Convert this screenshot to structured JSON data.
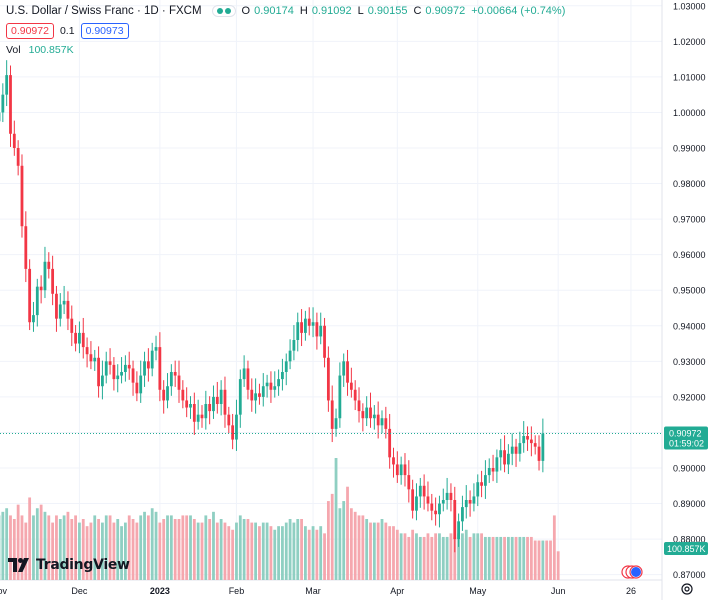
{
  "header": {
    "symbol": "U.S. Dollar / Swiss Franc · 1D · FXCM",
    "open_label": "O",
    "open": "0.90174",
    "high_label": "H",
    "high": "0.91092",
    "low_label": "L",
    "low": "0.90155",
    "close_label": "C",
    "close": "0.90972",
    "change": "+0.00664 (+0.74%)"
  },
  "price_row": {
    "sell": "0.90972",
    "spread": "0.1",
    "buy": "0.90973"
  },
  "volume": {
    "label": "Vol",
    "value": "100.857K"
  },
  "logo": {
    "text": "TradingView"
  },
  "colors": {
    "up": "#22ab94",
    "down": "#f23645",
    "up_vol": "#8fcfc2",
    "down_vol": "#f5a7ae",
    "grid": "#f0f3fa",
    "axis_text": "#131722"
  },
  "chart_data": {
    "type": "candlestick",
    "title": "U.S. Dollar / Swiss Franc",
    "y_ticks": [
      "0.87000",
      "0.88000",
      "0.89000",
      "0.90000",
      "0.91000",
      "0.92000",
      "0.93000",
      "0.94000",
      "0.95000",
      "0.96000",
      "0.97000",
      "0.98000",
      "0.99000",
      "1.00000",
      "1.01000",
      "1.02000",
      "1.03000"
    ],
    "ylim": [
      0.8685,
      1.0305
    ],
    "x_labels": [
      "Nov",
      "Dec",
      "2023",
      "Feb",
      "Mar",
      "Apr",
      "May",
      "Jun",
      "26"
    ],
    "x_label_positions": [
      0,
      21,
      42,
      62,
      82,
      104,
      125,
      146,
      165
    ],
    "x_range": [
      0,
      165
    ],
    "current_price_label": "0.90972",
    "countdown_label": "01:59:02",
    "volume_label": "100.857K",
    "closes": [
      1.0,
      1.005,
      1.0105,
      0.994,
      0.99,
      0.985,
      0.968,
      0.956,
      0.941,
      0.943,
      0.951,
      0.95,
      0.958,
      0.956,
      0.949,
      0.942,
      0.946,
      0.947,
      0.942,
      0.938,
      0.935,
      0.938,
      0.934,
      0.932,
      0.93,
      0.931,
      0.923,
      0.926,
      0.93,
      0.929,
      0.925,
      0.926,
      0.927,
      0.929,
      0.928,
      0.924,
      0.921,
      0.926,
      0.93,
      0.928,
      0.933,
      0.934,
      0.922,
      0.919,
      0.923,
      0.927,
      0.926,
      0.922,
      0.919,
      0.917,
      0.918,
      0.913,
      0.915,
      0.914,
      0.918,
      0.916,
      0.92,
      0.918,
      0.922,
      0.915,
      0.912,
      0.908,
      0.915,
      0.925,
      0.928,
      0.922,
      0.919,
      0.921,
      0.92,
      0.923,
      0.924,
      0.922,
      0.923,
      0.925,
      0.927,
      0.93,
      0.933,
      0.936,
      0.941,
      0.938,
      0.942,
      0.94,
      0.941,
      0.937,
      0.94,
      0.931,
      0.919,
      0.911,
      0.914,
      0.926,
      0.93,
      0.924,
      0.922,
      0.919,
      0.916,
      0.914,
      0.917,
      0.914,
      0.915,
      0.912,
      0.914,
      0.911,
      0.903,
      0.901,
      0.898,
      0.901,
      0.898,
      0.894,
      0.888,
      0.892,
      0.895,
      0.892,
      0.89,
      0.888,
      0.887,
      0.89,
      0.891,
      0.893,
      0.891,
      0.88,
      0.885,
      0.889,
      0.891,
      0.89,
      0.892,
      0.896,
      0.895,
      0.898,
      0.9,
      0.899,
      0.903,
      0.905,
      0.901,
      0.904,
      0.906,
      0.904,
      0.907,
      0.909,
      0.908,
      0.907,
      0.906,
      0.902,
      0.9097
    ],
    "volumes": [
      9,
      9.5,
      10,
      9,
      8.5,
      10.5,
      9,
      8,
      11.5,
      9,
      10,
      10.5,
      9.5,
      9,
      8,
      9,
      8.5,
      9,
      9.5,
      8.5,
      9,
      8,
      8.5,
      7.5,
      8,
      9,
      8.5,
      8,
      9,
      9,
      8,
      8.5,
      7.5,
      8,
      9,
      8.5,
      8,
      9,
      9.5,
      9,
      10,
      9.5,
      8,
      8.5,
      9,
      9,
      8.5,
      8.5,
      9,
      9,
      9,
      8.5,
      8,
      8,
      9,
      8.5,
      9.5,
      8,
      8.5,
      8,
      7.5,
      7,
      8,
      9,
      8.5,
      8.5,
      8,
      8,
      7.5,
      8,
      8,
      7.5,
      7,
      7.5,
      7.5,
      8,
      8.5,
      8,
      8.5,
      8.5,
      7.5,
      7,
      7.5,
      7,
      7.5,
      6.5,
      11,
      12,
      17,
      10,
      11,
      13,
      10,
      9.5,
      9,
      9,
      8.5,
      8,
      8,
      8,
      8.5,
      8,
      7.5,
      7.5,
      7,
      6.5,
      6.5,
      6,
      7,
      6.5,
      6,
      6,
      6.5,
      6,
      6.5,
      6.5,
      6,
      6,
      6.5,
      6,
      6.5,
      6.5,
      7,
      6,
      6.5,
      6.5,
      6.5,
      6,
      6,
      6,
      6,
      6,
      6,
      6,
      6,
      6,
      6,
      6,
      6,
      6,
      5.5,
      5.5,
      5.5,
      5.5,
      5.5,
      9,
      4
    ]
  }
}
